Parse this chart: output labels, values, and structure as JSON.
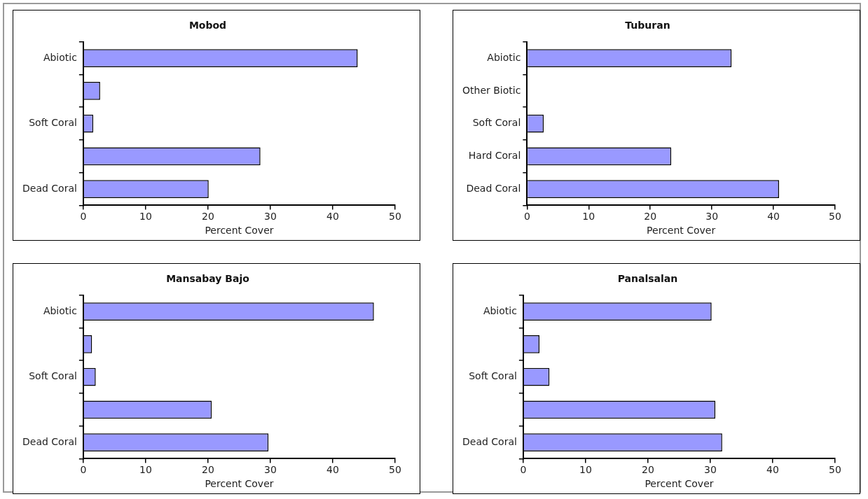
{
  "chart_data": [
    {
      "type": "bar",
      "orientation": "horizontal",
      "title": "Mobod",
      "xlabel": "Percent Cover",
      "categories": [
        "Abiotic",
        null,
        "Soft Coral",
        null,
        "Dead Coral"
      ],
      "values": [
        44.0,
        2.7,
        1.6,
        28.4,
        20.1
      ],
      "color": "#9999ff",
      "xlim": [
        0,
        50
      ],
      "xticks": [
        0,
        10,
        20,
        30,
        40,
        50
      ],
      "grid": false
    },
    {
      "type": "bar",
      "orientation": "horizontal",
      "title": "Tuburan",
      "xlabel": "Percent Cover",
      "categories": [
        "Abiotic",
        "Other Biotic",
        "Soft Coral",
        "Hard Coral",
        "Dead Coral"
      ],
      "values": [
        33.2,
        0,
        2.7,
        23.4,
        40.9
      ],
      "color": "#9999ff",
      "xlim": [
        0,
        50
      ],
      "xticks": [
        0,
        10,
        20,
        30,
        40,
        50
      ],
      "grid": false
    },
    {
      "type": "bar",
      "orientation": "horizontal",
      "title": "Mansabay Bajo",
      "xlabel": "Percent Cover",
      "categories": [
        "Abiotic",
        null,
        "Soft Coral",
        null,
        "Dead Coral"
      ],
      "values": [
        46.6,
        1.4,
        2.0,
        20.6,
        29.7
      ],
      "color": "#9999ff",
      "xlim": [
        0,
        50
      ],
      "xticks": [
        0,
        10,
        20,
        30,
        40,
        50
      ],
      "grid": false
    },
    {
      "type": "bar",
      "orientation": "horizontal",
      "title": "Panalsalan",
      "xlabel": "Percent Cover",
      "categories": [
        "Abiotic",
        null,
        "Soft Coral",
        null,
        "Dead Coral"
      ],
      "values": [
        30.2,
        2.6,
        4.2,
        30.8,
        31.9
      ],
      "color": "#9999ff",
      "xlim": [
        0,
        50
      ],
      "xticks": [
        0,
        10,
        20,
        30,
        40,
        50
      ],
      "grid": false
    }
  ]
}
